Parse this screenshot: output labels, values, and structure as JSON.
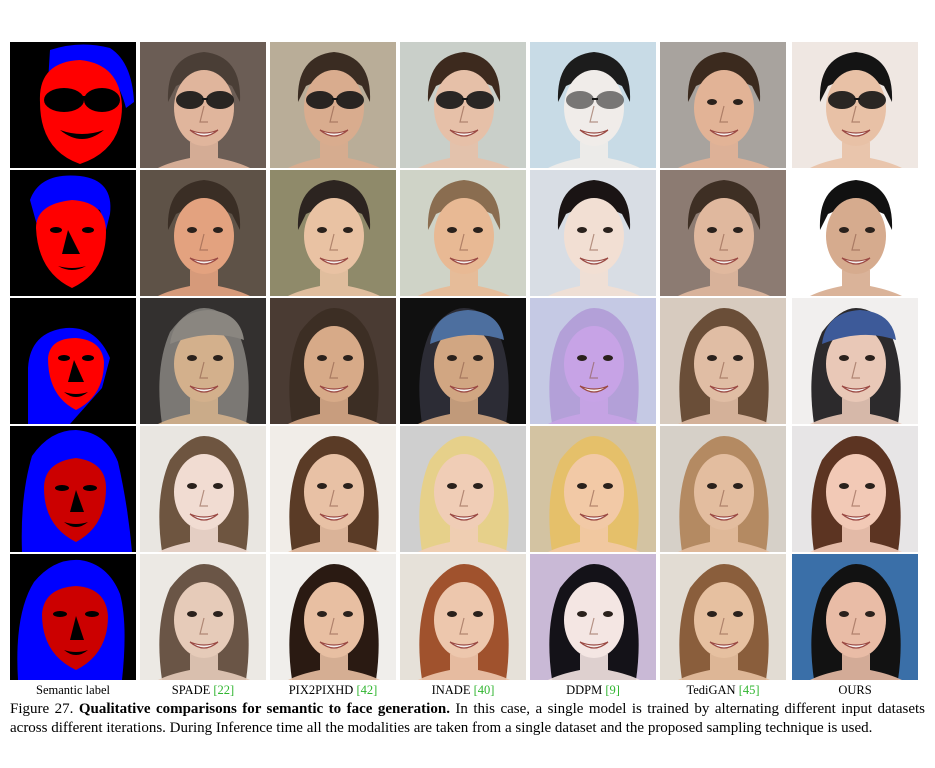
{
  "columns": [
    {
      "name": "Semantic label",
      "ref": ""
    },
    {
      "name": "SPADE ",
      "ref": "[22]"
    },
    {
      "name": "PIX2PIXHD ",
      "ref": "[42]"
    },
    {
      "name": "INADE ",
      "ref": "[40]"
    },
    {
      "name": "DDPM ",
      "ref": "[9]"
    },
    {
      "name": "TediGAN ",
      "ref": "[45]"
    },
    {
      "name": "OURS",
      "ref": ""
    }
  ],
  "caption": {
    "number": "Figure 27. ",
    "title": "Qualitative comparisons for semantic to face generation.",
    "text": " In this case, a single model is trained by alternating different input datasets across different iterations.  During Inference time all the modalities are taken from a single dataset and the proposed sampling technique is used."
  },
  "colors": {
    "mask_face_rows_1_3": "#ff0000",
    "mask_face_rows_4_5": "#cc0000",
    "mask_hair": "#0000ff",
    "mask_features": "#000000",
    "reference_link": "#2fb52f"
  }
}
